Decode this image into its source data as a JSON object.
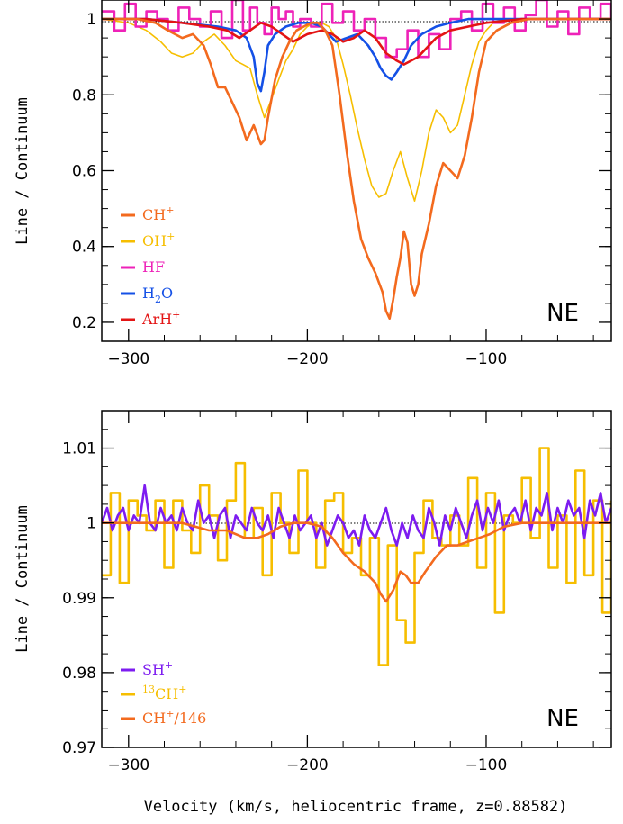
{
  "xlabel": "Velocity (km/s, heliocentric frame, z=0.88582)",
  "colors": {
    "ch_plus": "#f36a1e",
    "oh_plus": "#f6be00",
    "hf": "#ee22b8",
    "h2o": "#1450e6",
    "arh_plus": "#e31414",
    "sh_plus": "#7d1cf0",
    "c13h_plus": "#f6be00"
  },
  "chart_data": [
    {
      "type": "line",
      "panel_label": "NE",
      "ylabel": "Line / Continuum",
      "xlim": [
        -315,
        -30
      ],
      "ylim": [
        0.15,
        1.05
      ],
      "x_ticks": [
        -300,
        -200,
        -100
      ],
      "x_tick_labels": [
        "−300",
        "−200",
        "−100"
      ],
      "y_ticks": [
        0.2,
        0.4,
        0.6,
        0.8,
        1.0
      ],
      "y_tick_labels": [
        "0.2",
        "0.4",
        "0.6",
        "0.8",
        "1"
      ],
      "reference_line": 1.0,
      "legend": [
        {
          "base": "CH",
          "sup": "+",
          "sub": "",
          "tail": "",
          "series": "ch_plus"
        },
        {
          "base": "OH",
          "sup": "+",
          "sub": "",
          "tail": "",
          "series": "oh_plus"
        },
        {
          "base": "HF",
          "sup": "",
          "sub": "",
          "tail": "",
          "series": "hf"
        },
        {
          "base": "H",
          "sup": "",
          "sub": "2",
          "tail": "O",
          "series": "h2o"
        },
        {
          "base": "ArH",
          "sup": "+",
          "sub": "",
          "tail": "",
          "series": "arh_plus"
        }
      ],
      "series": [
        {
          "key": "oh_plus",
          "style": "smooth",
          "x": [
            -315,
            -300,
            -290,
            -282,
            -276,
            -270,
            -264,
            -258,
            -252,
            -246,
            -240,
            -236,
            -232,
            -228,
            -224,
            -220,
            -216,
            -212,
            -208,
            -204,
            -200,
            -196,
            -192,
            -188,
            -184,
            -180,
            -176,
            -172,
            -168,
            -164,
            -160,
            -156,
            -152,
            -148,
            -144,
            -140,
            -136,
            -132,
            -128,
            -124,
            -120,
            -116,
            -112,
            -108,
            -104,
            -100,
            -96,
            -90,
            -80,
            -60,
            -40,
            -30
          ],
          "y": [
            1.0,
            0.99,
            0.97,
            0.94,
            0.91,
            0.9,
            0.91,
            0.94,
            0.96,
            0.93,
            0.89,
            0.88,
            0.87,
            0.8,
            0.74,
            0.79,
            0.84,
            0.89,
            0.92,
            0.96,
            0.98,
            0.99,
            0.99,
            0.98,
            0.95,
            0.88,
            0.8,
            0.71,
            0.63,
            0.56,
            0.53,
            0.54,
            0.6,
            0.65,
            0.58,
            0.52,
            0.6,
            0.7,
            0.76,
            0.74,
            0.7,
            0.72,
            0.8,
            0.88,
            0.94,
            0.97,
            0.99,
            1.0,
            1.0,
            1.0,
            1.0,
            1.0
          ]
        },
        {
          "key": "hf",
          "style": "step",
          "x": [
            -315,
            -308,
            -302,
            -296,
            -290,
            -284,
            -278,
            -272,
            -266,
            -260,
            -254,
            -248,
            -242,
            -236,
            -232,
            -228,
            -224,
            -220,
            -216,
            -212,
            -208,
            -204,
            -198,
            -192,
            -186,
            -180,
            -174,
            -168,
            -162,
            -156,
            -150,
            -144,
            -138,
            -132,
            -126,
            -120,
            -114,
            -108,
            -102,
            -96,
            -90,
            -84,
            -78,
            -72,
            -66,
            -60,
            -54,
            -48,
            -42,
            -36,
            -30
          ],
          "y": [
            1.02,
            0.97,
            1.04,
            0.98,
            1.02,
            1.0,
            0.97,
            1.03,
            1.0,
            0.98,
            1.02,
            0.95,
            1.05,
            0.97,
            1.03,
            0.99,
            0.96,
            1.03,
            1.0,
            1.02,
            0.98,
            1.0,
            0.98,
            1.04,
            0.99,
            1.02,
            0.97,
            1.0,
            0.95,
            0.9,
            0.92,
            0.97,
            0.9,
            0.96,
            0.92,
            1.0,
            1.02,
            0.97,
            1.04,
            0.99,
            1.03,
            0.97,
            1.01,
            1.05,
            0.98,
            1.02,
            0.96,
            1.03,
            1.0,
            1.04,
            1.0
          ]
        },
        {
          "key": "h2o",
          "style": "line",
          "x": [
            -315,
            -290,
            -270,
            -250,
            -240,
            -234,
            -230,
            -228,
            -226,
            -224,
            -222,
            -218,
            -212,
            -205,
            -198,
            -192,
            -188,
            -184,
            -178,
            -172,
            -166,
            -162,
            -159,
            -156,
            -153,
            -150,
            -146,
            -142,
            -136,
            -128,
            -120,
            -110,
            -100,
            -80,
            -60,
            -40,
            -30
          ],
          "y": [
            1.0,
            1.0,
            0.99,
            0.98,
            0.97,
            0.95,
            0.9,
            0.83,
            0.81,
            0.86,
            0.93,
            0.96,
            0.98,
            0.99,
            0.99,
            0.98,
            0.96,
            0.94,
            0.95,
            0.96,
            0.93,
            0.9,
            0.87,
            0.85,
            0.84,
            0.86,
            0.89,
            0.93,
            0.96,
            0.98,
            0.99,
            1.0,
            1.0,
            1.0,
            1.0,
            1.0,
            1.0
          ]
        },
        {
          "key": "arh_plus",
          "style": "line",
          "x": [
            -315,
            -290,
            -270,
            -255,
            -245,
            -238,
            -232,
            -226,
            -220,
            -214,
            -208,
            -200,
            -192,
            -186,
            -180,
            -174,
            -168,
            -162,
            -156,
            -150,
            -146,
            -142,
            -138,
            -134,
            -128,
            -120,
            -110,
            -100,
            -80,
            -60,
            -40,
            -30
          ],
          "y": [
            1.0,
            1.0,
            0.99,
            0.98,
            0.97,
            0.95,
            0.97,
            0.99,
            0.98,
            0.96,
            0.94,
            0.96,
            0.97,
            0.96,
            0.94,
            0.95,
            0.97,
            0.95,
            0.91,
            0.89,
            0.88,
            0.89,
            0.9,
            0.92,
            0.95,
            0.97,
            0.98,
            0.99,
            1.0,
            1.0,
            1.0,
            1.0
          ]
        },
        {
          "key": "ch_plus",
          "style": "line",
          "x": [
            -315,
            -305,
            -295,
            -285,
            -278,
            -270,
            -264,
            -258,
            -254,
            -250,
            -246,
            -242,
            -238,
            -234,
            -230,
            -226,
            -224,
            -222,
            -218,
            -214,
            -210,
            -206,
            -202,
            -198,
            -194,
            -190,
            -186,
            -182,
            -178,
            -174,
            -170,
            -166,
            -162,
            -158,
            -156,
            -154,
            -152,
            -150,
            -148,
            -146,
            -144,
            -142,
            -140,
            -138,
            -136,
            -132,
            -128,
            -124,
            -120,
            -116,
            -112,
            -108,
            -104,
            -100,
            -94,
            -86,
            -76,
            -60,
            -45,
            -30
          ],
          "y": [
            1.0,
            1.0,
            1.0,
            0.99,
            0.97,
            0.95,
            0.96,
            0.93,
            0.88,
            0.82,
            0.82,
            0.78,
            0.74,
            0.68,
            0.72,
            0.67,
            0.68,
            0.74,
            0.84,
            0.9,
            0.94,
            0.97,
            0.98,
            0.99,
            0.99,
            0.97,
            0.93,
            0.8,
            0.65,
            0.52,
            0.42,
            0.37,
            0.33,
            0.28,
            0.23,
            0.21,
            0.26,
            0.32,
            0.37,
            0.44,
            0.41,
            0.3,
            0.27,
            0.3,
            0.38,
            0.46,
            0.56,
            0.62,
            0.6,
            0.58,
            0.64,
            0.74,
            0.86,
            0.94,
            0.97,
            0.99,
            1.0,
            1.0,
            1.0,
            1.0
          ]
        }
      ]
    },
    {
      "type": "line",
      "panel_label": "NE",
      "ylabel": "Line / Continuum",
      "xlim": [
        -315,
        -30
      ],
      "ylim": [
        0.97,
        1.015
      ],
      "x_ticks": [
        -300,
        -200,
        -100
      ],
      "x_tick_labels": [
        "−300",
        "−200",
        "−100"
      ],
      "y_ticks": [
        0.97,
        0.98,
        0.99,
        1.0,
        1.01
      ],
      "y_tick_labels": [
        "0.97",
        "0.98",
        "0.99",
        "1",
        "1.01"
      ],
      "reference_line": 1.0,
      "legend": [
        {
          "pre": "",
          "base": "SH",
          "sup": "+",
          "tail": "",
          "series": "sh_plus"
        },
        {
          "pre": "13",
          "base": "CH",
          "sup": "+",
          "tail": "",
          "series": "c13h_plus"
        },
        {
          "pre": "",
          "base": "CH",
          "sup": "+",
          "tail": "/146",
          "series": "ch_plus"
        }
      ],
      "series": [
        {
          "key": "c13h_plus",
          "style": "step",
          "x": [
            -315,
            -310,
            -305,
            -300,
            -295,
            -290,
            -285,
            -280,
            -275,
            -270,
            -265,
            -260,
            -255,
            -250,
            -245,
            -240,
            -235,
            -230,
            -225,
            -220,
            -215,
            -210,
            -205,
            -200,
            -195,
            -190,
            -185,
            -180,
            -175,
            -170,
            -165,
            -160,
            -155,
            -150,
            -145,
            -140,
            -135,
            -130,
            -125,
            -120,
            -115,
            -110,
            -105,
            -100,
            -95,
            -90,
            -85,
            -80,
            -75,
            -70,
            -65,
            -60,
            -55,
            -50,
            -45,
            -40,
            -35,
            -30
          ],
          "y": [
            0.993,
            1.004,
            0.992,
            1.003,
            1.001,
            0.999,
            1.003,
            0.994,
            1.003,
            0.999,
            0.996,
            1.005,
            1.001,
            0.995,
            1.003,
            1.008,
            0.998,
            1.002,
            0.993,
            1.004,
            1.0,
            0.996,
            1.007,
            1.0,
            0.994,
            1.003,
            1.004,
            0.996,
            0.998,
            0.993,
            0.998,
            0.981,
            0.997,
            0.987,
            0.984,
            0.996,
            1.003,
            0.998,
            0.997,
            1.001,
            0.997,
            1.006,
            0.994,
            1.004,
            0.988,
            1.001,
            1.0,
            1.006,
            0.998,
            1.01,
            0.994,
            1.001,
            0.992,
            1.007,
            0.993,
            1.003,
            0.988,
            1.003
          ]
        },
        {
          "key": "sh_plus",
          "style": "line",
          "x": [
            -315,
            -312,
            -309,
            -306,
            -303,
            -300,
            -297,
            -294,
            -291,
            -288,
            -285,
            -282,
            -279,
            -276,
            -273,
            -270,
            -267,
            -264,
            -261,
            -258,
            -255,
            -252,
            -249,
            -246,
            -243,
            -240,
            -237,
            -234,
            -231,
            -228,
            -225,
            -222,
            -219,
            -216,
            -213,
            -210,
            -207,
            -204,
            -201,
            -198,
            -195,
            -192,
            -189,
            -186,
            -183,
            -180,
            -177,
            -174,
            -171,
            -168,
            -165,
            -162,
            -159,
            -156,
            -153,
            -150,
            -147,
            -144,
            -141,
            -138,
            -135,
            -132,
            -129,
            -126,
            -123,
            -120,
            -117,
            -114,
            -111,
            -108,
            -105,
            -102,
            -99,
            -96,
            -93,
            -90,
            -87,
            -84,
            -81,
            -78,
            -75,
            -72,
            -69,
            -66,
            -63,
            -60,
            -57,
            -54,
            -51,
            -48,
            -45,
            -42,
            -39,
            -36,
            -33,
            -30
          ],
          "y": [
            1.0,
            1.002,
            0.999,
            1.001,
            1.002,
            0.999,
            1.001,
            1.0,
            1.005,
            1.0,
            0.999,
            1.002,
            1.0,
            1.001,
            0.999,
            1.002,
            1.0,
            0.999,
            1.003,
            1.0,
            1.001,
            0.998,
            1.001,
            1.002,
            0.998,
            1.001,
            1.0,
            0.999,
            1.002,
            1.0,
            0.999,
            1.001,
            0.998,
            1.002,
            1.0,
            0.998,
            1.001,
            0.999,
            1.0,
            1.001,
            0.998,
            1.0,
            0.997,
            0.999,
            1.001,
            1.0,
            0.998,
            0.999,
            0.997,
            1.001,
            0.999,
            0.998,
            1.0,
            1.002,
            0.999,
            0.997,
            1.0,
            0.998,
            1.001,
            0.999,
            0.998,
            1.002,
            1.0,
            0.997,
            1.001,
            0.999,
            1.002,
            1.0,
            0.998,
            1.001,
            1.003,
            0.999,
            1.002,
            1.0,
            1.003,
            0.999,
            1.001,
            1.002,
            1.0,
            1.003,
            0.999,
            1.002,
            1.001,
            1.004,
            0.999,
            1.002,
            1.0,
            1.003,
            1.001,
            1.002,
            0.998,
            1.003,
            1.001,
            1.004,
            1.0,
            1.002
          ]
        },
        {
          "key": "ch_plus",
          "style": "line",
          "x": [
            -315,
            -290,
            -270,
            -255,
            -245,
            -235,
            -228,
            -222,
            -215,
            -208,
            -200,
            -192,
            -186,
            -180,
            -174,
            -168,
            -162,
            -159,
            -156,
            -152,
            -148,
            -145,
            -142,
            -138,
            -134,
            -128,
            -122,
            -116,
            -110,
            -104,
            -98,
            -90,
            -80,
            -60,
            -45,
            -30
          ],
          "y": [
            1.0,
            1.0,
            1.0,
            0.999,
            0.999,
            0.998,
            0.998,
            0.9985,
            0.9995,
            1.0,
            1.0,
            0.9995,
            0.998,
            0.996,
            0.9945,
            0.9935,
            0.992,
            0.9905,
            0.9895,
            0.991,
            0.9935,
            0.993,
            0.992,
            0.992,
            0.9935,
            0.9955,
            0.997,
            0.997,
            0.9975,
            0.998,
            0.9985,
            0.9995,
            1.0,
            1.0,
            1.0,
            1.0
          ]
        }
      ]
    }
  ]
}
